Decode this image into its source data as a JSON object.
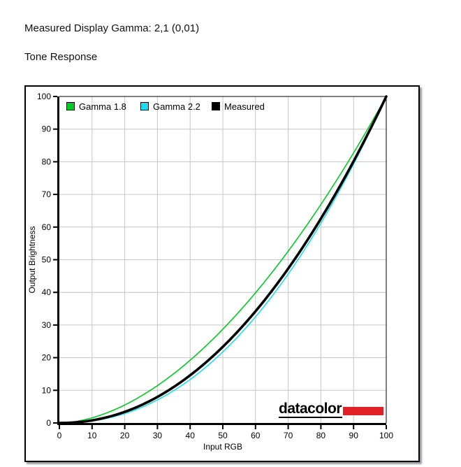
{
  "page": {
    "title": "Measured Display Gamma: 2,1 (0,01)",
    "subtitle": "Tone Response"
  },
  "chart_data": {
    "type": "line",
    "title": "Tone Response",
    "xlabel": "Input RGB",
    "ylabel": "Output Brightness",
    "xlim": [
      0,
      100
    ],
    "ylim": [
      0,
      100
    ],
    "x_ticks": [
      0,
      10,
      20,
      30,
      40,
      50,
      60,
      70,
      80,
      90,
      100
    ],
    "y_ticks": [
      0,
      10,
      20,
      30,
      40,
      50,
      60,
      70,
      80,
      90,
      100
    ],
    "grid": true,
    "legend_position": "inside-top-left",
    "colors": {
      "grid": "#c6c6c6",
      "axis": "#000000"
    },
    "series": [
      {
        "name": "Gamma 1.8",
        "color": "#00cc22",
        "gamma": 1.8,
        "line_width": 1.6,
        "x": [
          0,
          10,
          20,
          30,
          40,
          50,
          60,
          70,
          80,
          90,
          100
        ],
        "y": [
          0,
          1.6,
          5.5,
          11.4,
          19.2,
          28.7,
          39.9,
          52.6,
          66.9,
          82.7,
          100
        ]
      },
      {
        "name": "Gamma 2.2",
        "color": "#1fdcee",
        "gamma": 2.2,
        "line_width": 1.6,
        "x": [
          0,
          10,
          20,
          30,
          40,
          50,
          60,
          70,
          80,
          90,
          100
        ],
        "y": [
          0,
          0.6,
          2.9,
          7.1,
          13.3,
          21.8,
          32.5,
          45.6,
          61.2,
          79.3,
          100
        ]
      },
      {
        "name": "Measured",
        "color": "#000000",
        "gamma": 2.1,
        "line_width": 3.6,
        "x": [
          0,
          10,
          20,
          30,
          40,
          50,
          60,
          70,
          80,
          90,
          100
        ],
        "y": [
          0,
          0.8,
          3.4,
          8.0,
          14.6,
          23.3,
          34.2,
          47.3,
          62.6,
          80.1,
          100
        ]
      }
    ],
    "branding": {
      "logo_text": "datacolor",
      "logo_bar_color": "#e02128"
    }
  }
}
